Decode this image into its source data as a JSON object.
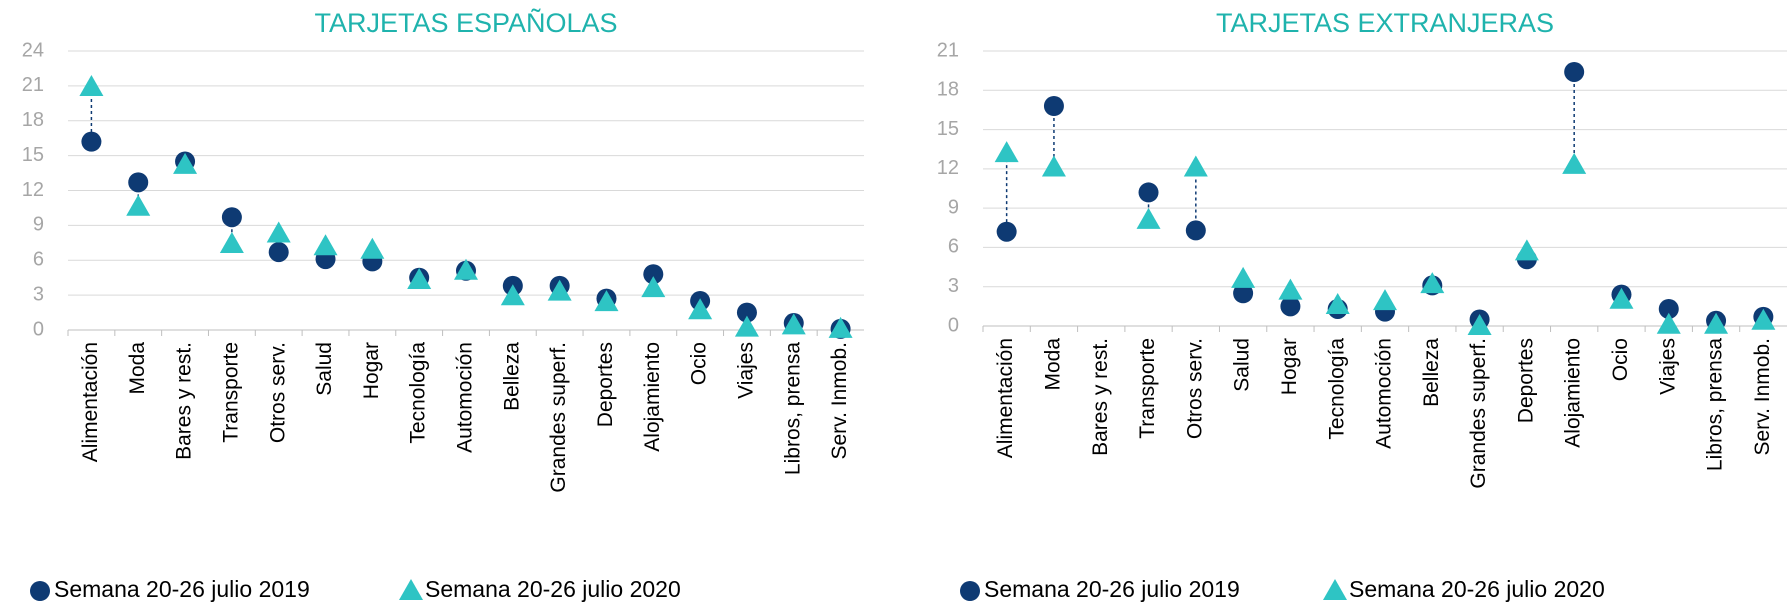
{
  "chart_data": [
    {
      "type": "dot",
      "title": "TARJETAS ESPAÑOLAS",
      "categories": [
        "Alimentación",
        "Moda",
        "Bares y rest.",
        "Transporte",
        "Otros serv.",
        "Salud",
        "Hogar",
        "Tecnología",
        "Automoción",
        "Belleza",
        "Grandes superf.",
        "Deportes",
        "Alojamiento",
        "Ocio",
        "Viajes",
        "Libros, prensa",
        "Serv. Inmob."
      ],
      "series": [
        {
          "name": "Semana 20-26 julio 2019",
          "color": "#0e3a73",
          "marker": "circle",
          "values": [
            16.2,
            12.7,
            14.5,
            9.7,
            6.7,
            6.1,
            5.9,
            4.5,
            5.1,
            3.8,
            3.8,
            2.7,
            4.8,
            2.5,
            1.5,
            0.6,
            0.1
          ]
        },
        {
          "name": "Semana 20-26 julio 2020",
          "color": "#2ec4c4",
          "marker": "triangle",
          "values": [
            20.9,
            10.6,
            14.2,
            7.4,
            8.3,
            7.2,
            6.9,
            4.3,
            5.1,
            2.9,
            3.3,
            2.4,
            3.6,
            1.7,
            0.2,
            0.4,
            0.1
          ]
        }
      ],
      "ylim": [
        0,
        24
      ],
      "yticks": [
        0,
        3,
        6,
        9,
        12,
        15,
        18,
        21,
        24
      ],
      "grid": true
    },
    {
      "type": "dot",
      "title": "TARJETAS EXTRANJERAS",
      "categories": [
        "Alimentación",
        "Moda",
        "Bares y rest.",
        "Transporte",
        "Otros serv.",
        "Salud",
        "Hogar",
        "Tecnología",
        "Automoción",
        "Belleza",
        "Grandes superf.",
        "Deportes",
        "Alojamiento",
        "Ocio",
        "Viajes",
        "Libros, prensa",
        "Serv. Inmob."
      ],
      "series": [
        {
          "name": "Semana 20-26 julio 2019",
          "color": "#0e3a73",
          "marker": "circle",
          "values": [
            7.2,
            16.8,
            null,
            10.2,
            7.3,
            2.5,
            1.5,
            1.3,
            1.1,
            3.1,
            0.5,
            5.1,
            19.4,
            2.4,
            1.3,
            0.4,
            0.7
          ]
        },
        {
          "name": "Semana 20-26 julio 2020",
          "color": "#2ec4c4",
          "marker": "triangle",
          "values": [
            13.2,
            12.1,
            null,
            8.1,
            12.1,
            3.6,
            2.7,
            1.6,
            1.9,
            3.2,
            0.0,
            5.7,
            12.3,
            2.0,
            0.1,
            0.1,
            0.4
          ]
        }
      ],
      "ylim": [
        0,
        21
      ],
      "yticks": [
        0,
        3,
        6,
        9,
        12,
        15,
        18,
        21
      ],
      "grid": true
    }
  ]
}
